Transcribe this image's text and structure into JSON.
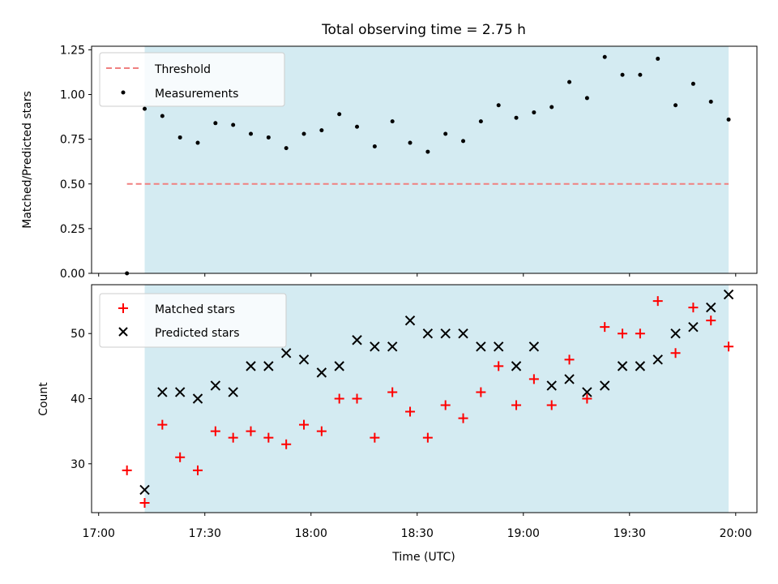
{
  "chart_data": {
    "title": "Total observing time = 2.75 h",
    "x_time_labels": [
      "17:08",
      "17:13",
      "17:18",
      "17:23",
      "17:28",
      "17:33",
      "17:38",
      "17:43",
      "17:48",
      "17:53",
      "17:58",
      "18:03",
      "18:08",
      "18:13",
      "18:18",
      "18:23",
      "18:28",
      "18:33",
      "18:38",
      "18:43",
      "18:48",
      "18:53",
      "18:58",
      "19:03",
      "19:08",
      "19:13",
      "19:18",
      "19:23",
      "19:28",
      "19:33",
      "19:38",
      "19:43",
      "19:48",
      "19:53",
      "19:58"
    ],
    "observing_window": [
      "17:13",
      "19:58"
    ],
    "window_color": "#add8e6",
    "xlabel": "Time (UTC)",
    "x_ticks": [
      "17:00",
      "17:30",
      "18:00",
      "18:30",
      "19:00",
      "19:30",
      "20:00"
    ],
    "panels": [
      {
        "type": "scatter",
        "ylabel": "Matched/Predicted stars",
        "ylim": [
          0,
          1.27
        ],
        "y_ticks": [
          "0.00",
          "0.25",
          "0.50",
          "0.75",
          "1.00",
          "1.25"
        ],
        "legend_position": "top-left",
        "threshold": {
          "name": "Threshold",
          "value": 0.5,
          "from": "17:08",
          "to": "19:58",
          "color": "#f08080"
        },
        "series": [
          {
            "name": "Measurements",
            "marker": "dot",
            "color": "#000000",
            "values": [
              0.0,
              0.92,
              0.88,
              0.76,
              0.73,
              0.84,
              0.83,
              0.78,
              0.76,
              0.7,
              0.78,
              0.8,
              0.89,
              0.82,
              0.71,
              0.85,
              0.73,
              0.68,
              0.78,
              0.74,
              0.85,
              0.94,
              0.87,
              0.9,
              0.93,
              1.07,
              0.98,
              1.21,
              1.11,
              1.11,
              1.2,
              0.94,
              1.06,
              0.96,
              0.86
            ]
          }
        ]
      },
      {
        "type": "scatter",
        "ylabel": "Count",
        "ylim": [
          22.5,
          57.5
        ],
        "y_ticks": [
          "30",
          "40",
          "50"
        ],
        "legend_position": "top-left",
        "series": [
          {
            "name": "Matched stars",
            "marker": "plus",
            "color": "#ff0000",
            "values": [
              29,
              24,
              36,
              31,
              29,
              35,
              34,
              35,
              34,
              33,
              36,
              35,
              40,
              40,
              34,
              41,
              38,
              34,
              39,
              37,
              41,
              45,
              39,
              43,
              39,
              46,
              40,
              51,
              50,
              50,
              55,
              47,
              54,
              52,
              48
            ]
          },
          {
            "name": "Predicted stars",
            "marker": "x",
            "color": "#000000",
            "values": [
              null,
              26,
              41,
              41,
              40,
              42,
              41,
              45,
              45,
              47,
              46,
              44,
              45,
              49,
              48,
              48,
              52,
              50,
              50,
              50,
              48,
              48,
              45,
              48,
              42,
              43,
              41,
              42,
              45,
              45,
              46,
              50,
              51,
              54,
              56
            ]
          }
        ]
      }
    ]
  }
}
